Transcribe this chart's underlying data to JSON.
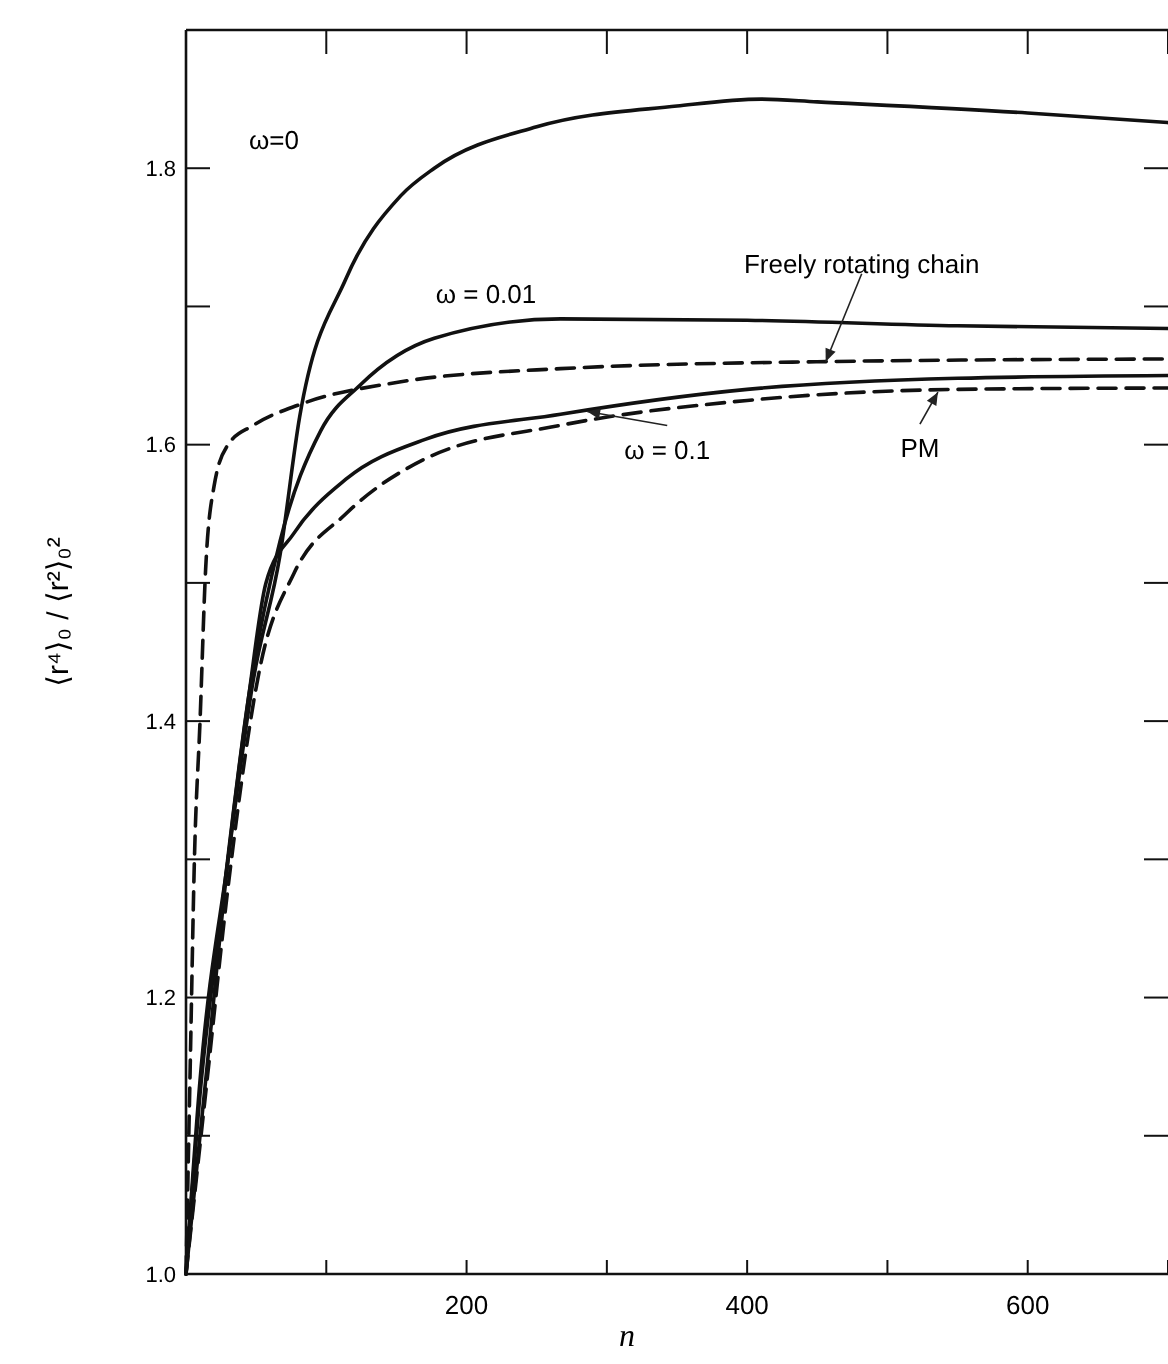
{
  "chart_data": {
    "type": "line",
    "xlabel": "n",
    "ylabel": "⟨r⁴⟩₀ / ⟨r²⟩₀²",
    "xlim": [
      0,
      700
    ],
    "ylim": [
      1.0,
      1.9
    ],
    "xticks": [
      {
        "value": 100,
        "label": null
      },
      200,
      {
        "value": 300,
        "label": null
      },
      400,
      {
        "value": 500,
        "label": null
      },
      600,
      {
        "value": 700,
        "label": null
      }
    ],
    "yticks": [
      {
        "value": 1,
        "label": "1.0"
      },
      {
        "value": 1.1,
        "label": null
      },
      1.2,
      {
        "value": 1.3,
        "label": null
      },
      1.4,
      {
        "value": 1.5,
        "label": null
      },
      1.6,
      {
        "value": 1.7,
        "label": null
      },
      1.8
    ],
    "grid": false,
    "marker": "none",
    "series": [
      {
        "color": "#111111",
        "line_style": "solid",
        "x": [
          0,
          10,
          30,
          48,
          67,
          81,
          114,
          153,
          177,
          250,
          350,
          410,
          450,
          600,
          700
        ],
        "values": [
          1.0,
          1.14,
          1.3,
          1.43,
          1.52,
          1.62,
          1.72,
          1.78,
          1.8,
          1.83,
          1.845,
          1.85,
          1.848,
          1.84,
          1.833
        ]
      },
      {
        "color": "#111111",
        "line_style": "solid",
        "x": [
          0,
          10,
          25,
          45,
          67,
          96,
          124,
          177,
          267,
          400,
          550,
          700
        ],
        "values": [
          1.0,
          1.13,
          1.26,
          1.42,
          1.53,
          1.61,
          1.643,
          1.677,
          1.691,
          1.69,
          1.686,
          1.684
        ]
      },
      {
        "color": "#111111",
        "line_style": "dashed",
        "x": [
          0,
          3,
          6,
          10,
          14,
          20,
          30,
          48,
          81,
          150,
          267,
          450,
          700
        ],
        "values": [
          1.0,
          1.15,
          1.3,
          1.4,
          1.51,
          1.57,
          1.6,
          1.614,
          1.629,
          1.645,
          1.655,
          1.66,
          1.662
        ]
      },
      {
        "color": "#111111",
        "line_style": "solid",
        "x": [
          0,
          15,
          30,
          45,
          57,
          77,
          114,
          171,
          267,
          400,
          550,
          700
        ],
        "values": [
          1.0,
          1.15,
          1.3,
          1.42,
          1.5,
          1.536,
          1.575,
          1.604,
          1.622,
          1.64,
          1.648,
          1.65
        ]
      },
      {
        "color": "#111111",
        "line_style": "dashed",
        "x": [
          0,
          15,
          30,
          53,
          77,
          114,
          171,
          267,
          400,
          550,
          700
        ],
        "values": [
          1.0,
          1.14,
          1.28,
          1.44,
          1.507,
          1.55,
          1.59,
          1.614,
          1.632,
          1.64,
          1.641
        ]
      }
    ],
    "annotations": [
      "ω=0",
      "ω = 0.01",
      {
        "text": "Freely rotating chain",
        "x": 456,
        "y": 1.66
      },
      {
        "text": "ω = 0.1",
        "x": 286,
        "y": 1.624
      },
      {
        "text": "PM",
        "x": 536,
        "y": 1.638
      }
    ]
  }
}
